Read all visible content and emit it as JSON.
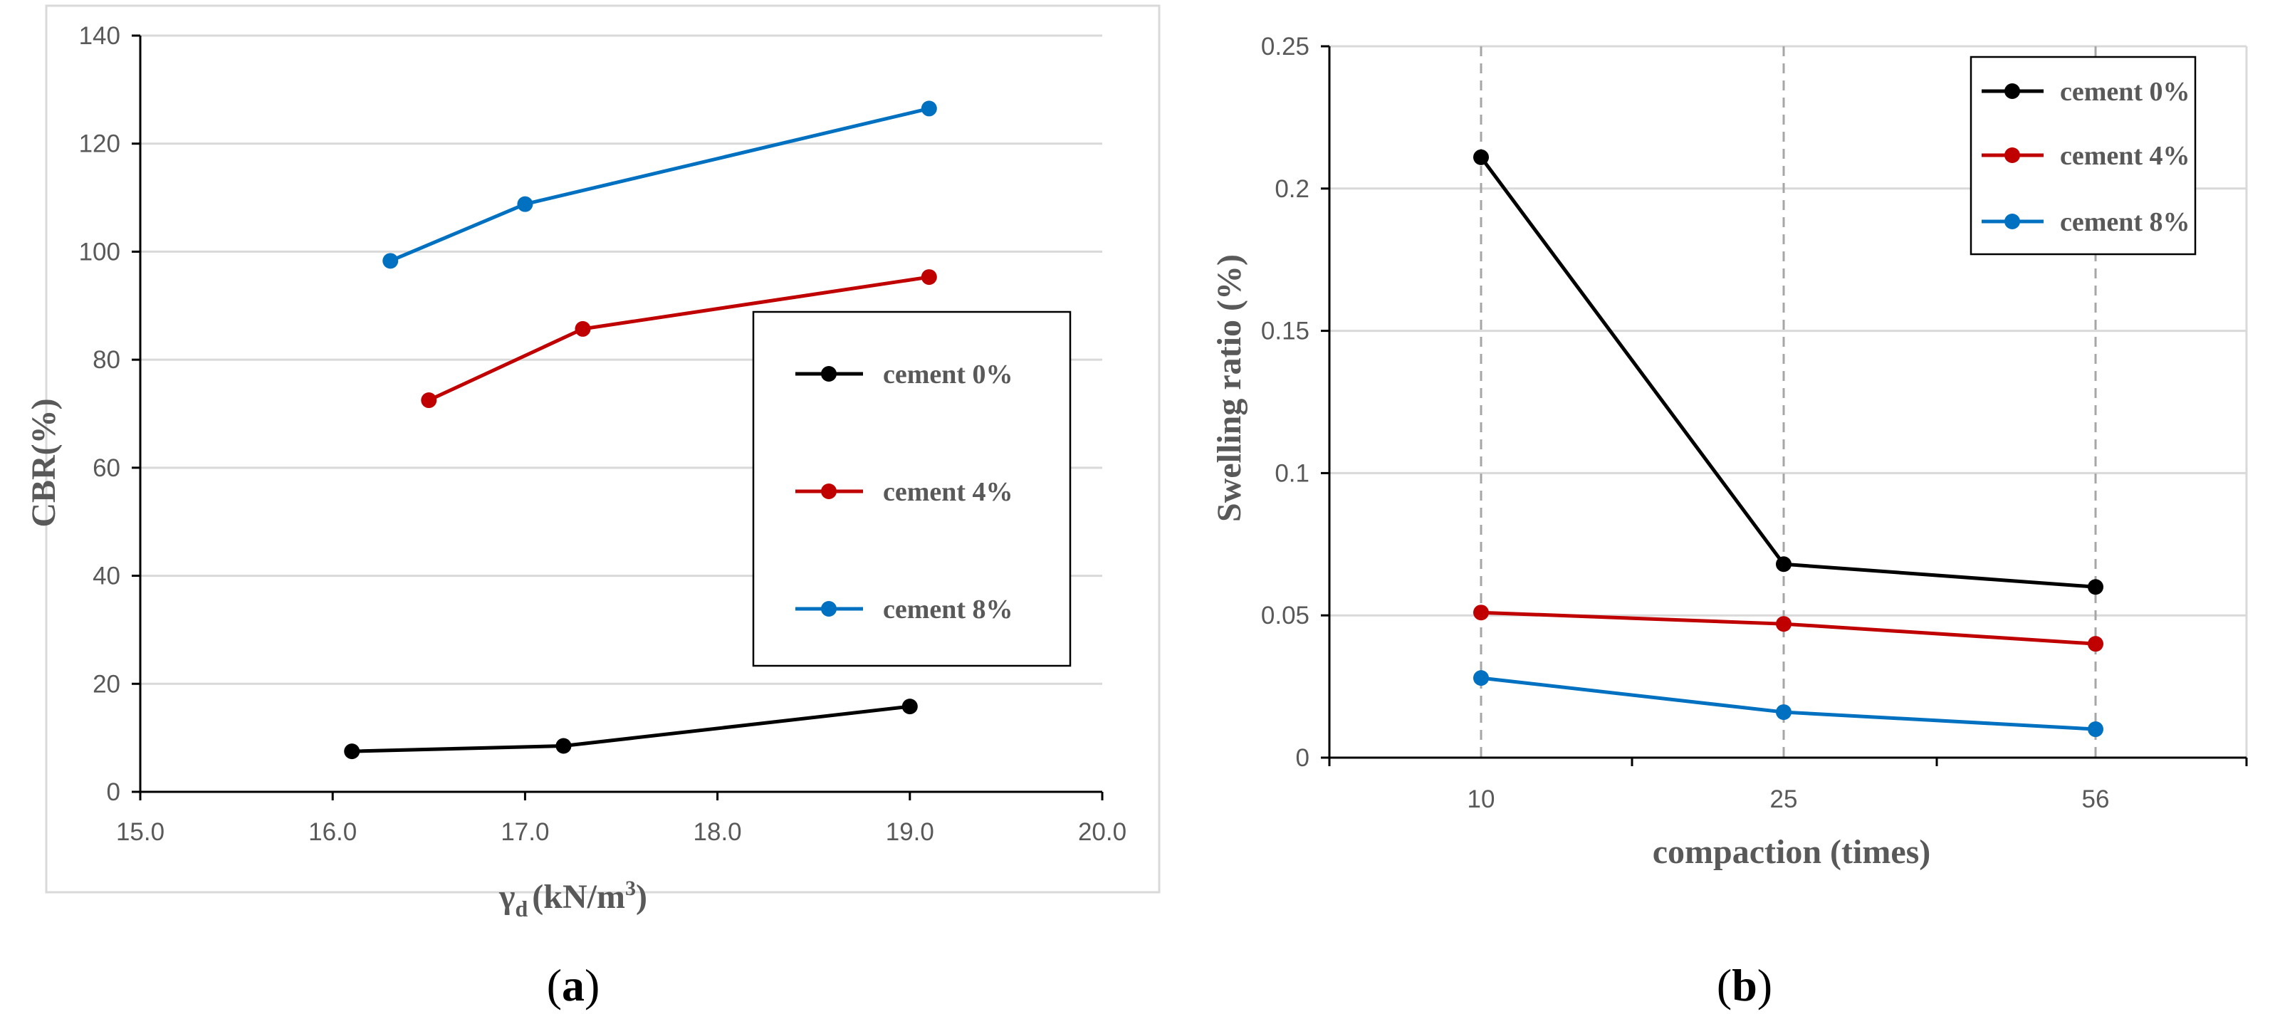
{
  "chart_data": [
    {
      "type": "line",
      "panel_label": "a",
      "title": "",
      "xlabel_symbol": "γ",
      "xlabel_subscript": "d",
      "xlabel_unit": "(kN/m",
      "xlabel_unit_sup": "3",
      "xlabel_close": ")",
      "ylabel": "CBR(%)",
      "xlim": [
        15.0,
        20.0
      ],
      "ylim": [
        0,
        140
      ],
      "xticks": [
        "15.0",
        "16.0",
        "17.0",
        "18.0",
        "19.0",
        "20.0"
      ],
      "yticks": [
        "0",
        "20",
        "40",
        "60",
        "80",
        "100",
        "120",
        "140"
      ],
      "grid": "horizontal",
      "legend_position": "center-right",
      "series": [
        {
          "name": "cement 0%",
          "color": "#000000",
          "x": [
            16.1,
            17.2,
            19.0
          ],
          "y": [
            7.5,
            8.5,
            15.8
          ]
        },
        {
          "name": "cement 4%",
          "color": "#c00000",
          "x": [
            16.5,
            17.3,
            19.1
          ],
          "y": [
            72.5,
            85.7,
            95.3
          ]
        },
        {
          "name": "cement 8%",
          "color": "#0070c0",
          "x": [
            16.3,
            17.0,
            19.1
          ],
          "y": [
            98.3,
            108.8,
            126.5
          ]
        }
      ]
    },
    {
      "type": "line",
      "panel_label": "b",
      "title": "",
      "xlabel": "compaction (times)",
      "ylabel": "Swelling ratio (%)",
      "categories": [
        "10",
        "25",
        "56"
      ],
      "ylim": [
        0,
        0.25
      ],
      "yticks": [
        "0",
        "0.05",
        "0.1",
        "0.15",
        "0.2",
        "0.25"
      ],
      "grid": "horizontal + dashed vertical at categories",
      "legend_position": "top-right",
      "series": [
        {
          "name": "cement 0%",
          "color": "#000000",
          "values": [
            0.211,
            0.068,
            0.06
          ]
        },
        {
          "name": "cement 4%",
          "color": "#c00000",
          "values": [
            0.051,
            0.047,
            0.04
          ]
        },
        {
          "name": "cement 8%",
          "color": "#0070c0",
          "values": [
            0.028,
            0.016,
            0.01
          ]
        }
      ]
    }
  ]
}
